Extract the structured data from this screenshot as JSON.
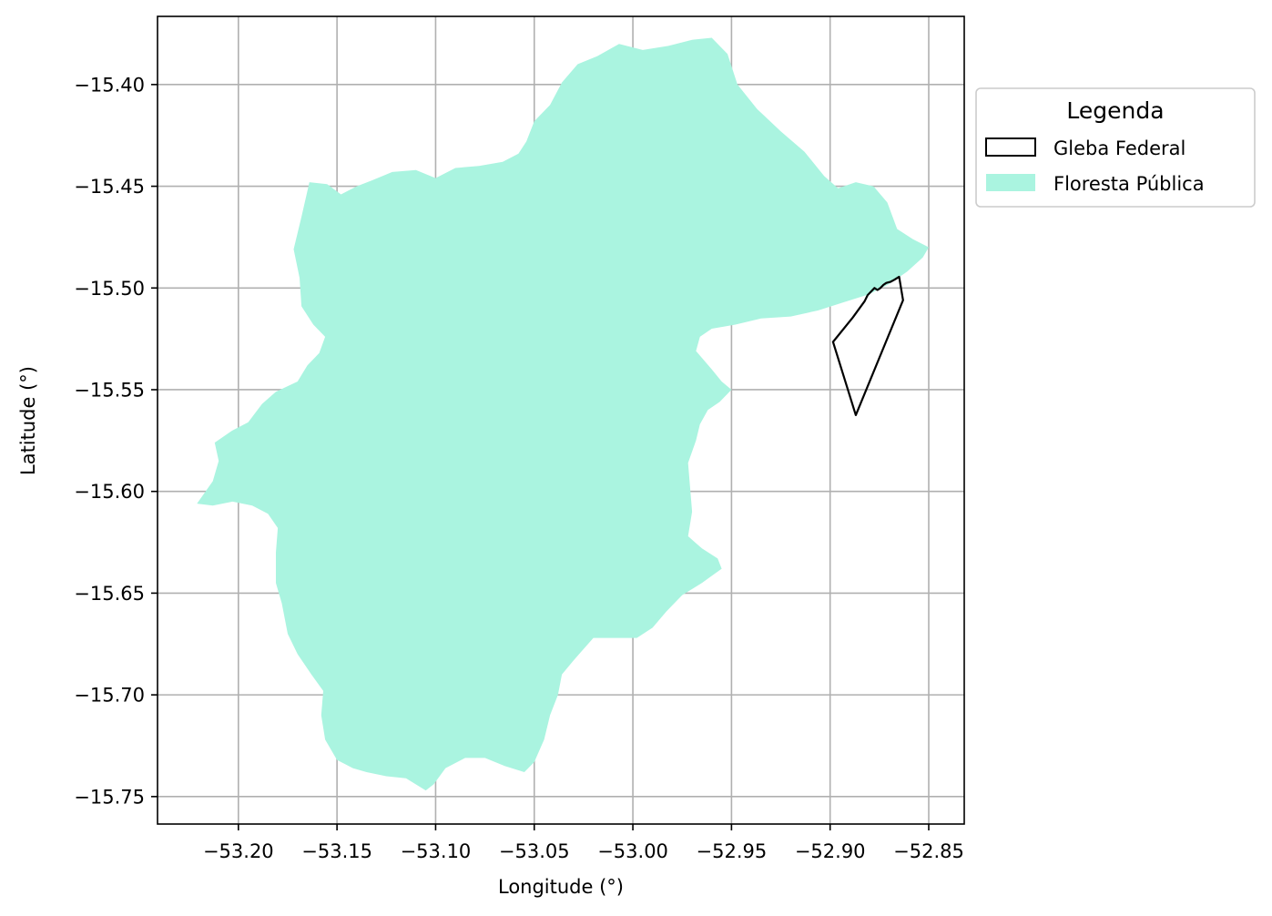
{
  "chart_data": {
    "type": "map",
    "xlabel": "Longitude (°)",
    "ylabel": "Latitude (°)",
    "xlim": [
      -53.241,
      -52.832
    ],
    "ylim": [
      -15.7635,
      -15.3665
    ],
    "grid": true,
    "x_ticks": [
      {
        "value": -53.2,
        "label": "−53.20"
      },
      {
        "value": -53.15,
        "label": "−53.15"
      },
      {
        "value": -53.1,
        "label": "−53.10"
      },
      {
        "value": -53.05,
        "label": "−53.05"
      },
      {
        "value": -53.0,
        "label": "−53.00"
      },
      {
        "value": -52.95,
        "label": "−52.95"
      },
      {
        "value": -52.9,
        "label": "−52.90"
      },
      {
        "value": -52.85,
        "label": "−52.85"
      }
    ],
    "y_ticks": [
      {
        "value": -15.4,
        "label": "−15.40"
      },
      {
        "value": -15.45,
        "label": "−15.45"
      },
      {
        "value": -15.5,
        "label": "−15.50"
      },
      {
        "value": -15.55,
        "label": "−15.55"
      },
      {
        "value": -15.6,
        "label": "−15.60"
      },
      {
        "value": -15.65,
        "label": "−15.65"
      },
      {
        "value": -15.7,
        "label": "−15.70"
      },
      {
        "value": -15.75,
        "label": "−15.75"
      }
    ],
    "legend": {
      "title": "Legenda",
      "placement": "outside-right-top",
      "entries": [
        {
          "label": "Gleba Federal",
          "style": "outline",
          "color": "#000000"
        },
        {
          "label": "Floresta Pública",
          "style": "fill",
          "color": "#aaf4e0"
        }
      ]
    },
    "layers": [
      {
        "name": "Floresta Pública",
        "fill": "#aaf4e0",
        "coordinates": [
          [
            -53.172,
            -15.481
          ],
          [
            -53.168,
            -15.465
          ],
          [
            -53.164,
            -15.448
          ],
          [
            -53.155,
            -15.449
          ],
          [
            -53.148,
            -15.454
          ],
          [
            -53.14,
            -15.45
          ],
          [
            -53.132,
            -15.447
          ],
          [
            -53.122,
            -15.443
          ],
          [
            -53.11,
            -15.442
          ],
          [
            -53.1,
            -15.446
          ],
          [
            -53.09,
            -15.441
          ],
          [
            -53.078,
            -15.44
          ],
          [
            -53.066,
            -15.438
          ],
          [
            -53.058,
            -15.434
          ],
          [
            -53.054,
            -15.428
          ],
          [
            -53.05,
            -15.418
          ],
          [
            -53.042,
            -15.41
          ],
          [
            -53.036,
            -15.399
          ],
          [
            -53.028,
            -15.39
          ],
          [
            -53.018,
            -15.386
          ],
          [
            -53.007,
            -15.38
          ],
          [
            -52.995,
            -15.383
          ],
          [
            -52.982,
            -15.381
          ],
          [
            -52.97,
            -15.378
          ],
          [
            -52.96,
            -15.377
          ],
          [
            -52.952,
            -15.385
          ],
          [
            -52.947,
            -15.4
          ],
          [
            -52.937,
            -15.412
          ],
          [
            -52.925,
            -15.423
          ],
          [
            -52.913,
            -15.433
          ],
          [
            -52.903,
            -15.445
          ],
          [
            -52.896,
            -15.451
          ],
          [
            -52.887,
            -15.448
          ],
          [
            -52.878,
            -15.45
          ],
          [
            -52.871,
            -15.458
          ],
          [
            -52.866,
            -15.471
          ],
          [
            -52.858,
            -15.476
          ],
          [
            -52.85,
            -15.48
          ],
          [
            -52.853,
            -15.485
          ],
          [
            -52.861,
            -15.492
          ],
          [
            -52.87,
            -15.498
          ],
          [
            -52.88,
            -15.503
          ],
          [
            -52.893,
            -15.507
          ],
          [
            -52.906,
            -15.511
          ],
          [
            -52.92,
            -15.514
          ],
          [
            -52.935,
            -15.515
          ],
          [
            -52.948,
            -15.518
          ],
          [
            -52.96,
            -15.52
          ],
          [
            -52.966,
            -15.524
          ],
          [
            -52.968,
            -15.531
          ],
          [
            -52.96,
            -15.54
          ],
          [
            -52.955,
            -15.546
          ],
          [
            -52.95,
            -15.55
          ],
          [
            -52.956,
            -15.556
          ],
          [
            -52.962,
            -15.56
          ],
          [
            -52.966,
            -15.567
          ],
          [
            -52.968,
            -15.575
          ],
          [
            -52.972,
            -15.586
          ],
          [
            -52.971,
            -15.598
          ],
          [
            -52.97,
            -15.61
          ],
          [
            -52.972,
            -15.622
          ],
          [
            -52.965,
            -15.628
          ],
          [
            -52.957,
            -15.633
          ],
          [
            -52.955,
            -15.638
          ],
          [
            -52.965,
            -15.645
          ],
          [
            -52.975,
            -15.651
          ],
          [
            -52.983,
            -15.659
          ],
          [
            -52.99,
            -15.667
          ],
          [
            -52.998,
            -15.672
          ],
          [
            -53.01,
            -15.672
          ],
          [
            -53.02,
            -15.672
          ],
          [
            -53.03,
            -15.683
          ],
          [
            -53.036,
            -15.69
          ],
          [
            -53.038,
            -15.7
          ],
          [
            -53.042,
            -15.71
          ],
          [
            -53.045,
            -15.722
          ],
          [
            -53.05,
            -15.733
          ],
          [
            -53.055,
            -15.738
          ],
          [
            -53.065,
            -15.735
          ],
          [
            -53.075,
            -15.731
          ],
          [
            -53.085,
            -15.731
          ],
          [
            -53.095,
            -15.736
          ],
          [
            -53.101,
            -15.744
          ],
          [
            -53.105,
            -15.747
          ],
          [
            -53.115,
            -15.741
          ],
          [
            -53.125,
            -15.74
          ],
          [
            -53.135,
            -15.738
          ],
          [
            -53.142,
            -15.736
          ],
          [
            -53.15,
            -15.732
          ],
          [
            -53.156,
            -15.722
          ],
          [
            -53.158,
            -15.71
          ],
          [
            -53.157,
            -15.698
          ],
          [
            -53.163,
            -15.69
          ],
          [
            -53.17,
            -15.68
          ],
          [
            -53.175,
            -15.67
          ],
          [
            -53.178,
            -15.655
          ],
          [
            -53.181,
            -15.645
          ],
          [
            -53.181,
            -15.63
          ],
          [
            -53.18,
            -15.618
          ],
          [
            -53.185,
            -15.611
          ],
          [
            -53.193,
            -15.607
          ],
          [
            -53.203,
            -15.605
          ],
          [
            -53.213,
            -15.607
          ],
          [
            -53.221,
            -15.606
          ],
          [
            -53.213,
            -15.595
          ],
          [
            -53.21,
            -15.585
          ],
          [
            -53.212,
            -15.576
          ],
          [
            -53.203,
            -15.57
          ],
          [
            -53.195,
            -15.566
          ],
          [
            -53.188,
            -15.557
          ],
          [
            -53.181,
            -15.551
          ],
          [
            -53.17,
            -15.546
          ],
          [
            -53.165,
            -15.538
          ],
          [
            -53.159,
            -15.532
          ],
          [
            -53.156,
            -15.524
          ],
          [
            -53.162,
            -15.518
          ],
          [
            -53.168,
            -15.509
          ],
          [
            -53.169,
            -15.495
          ],
          [
            -53.172,
            -15.481
          ]
        ]
      },
      {
        "name": "Gleba Federal",
        "stroke": "#000000",
        "coordinates": [
          [
            -52.8985,
            -15.5265
          ],
          [
            -52.8885,
            -15.5145
          ],
          [
            -52.8825,
            -15.5065
          ],
          [
            -52.881,
            -15.5035
          ],
          [
            -52.879,
            -15.5015
          ],
          [
            -52.8775,
            -15.5
          ],
          [
            -52.876,
            -15.501
          ],
          [
            -52.8745,
            -15.5
          ],
          [
            -52.873,
            -15.4985
          ],
          [
            -52.8715,
            -15.4975
          ],
          [
            -52.8695,
            -15.497
          ],
          [
            -52.8675,
            -15.496
          ],
          [
            -52.865,
            -15.4945
          ],
          [
            -52.863,
            -15.506
          ],
          [
            -52.887,
            -15.5625
          ],
          [
            -52.8985,
            -15.5265
          ]
        ]
      }
    ]
  }
}
